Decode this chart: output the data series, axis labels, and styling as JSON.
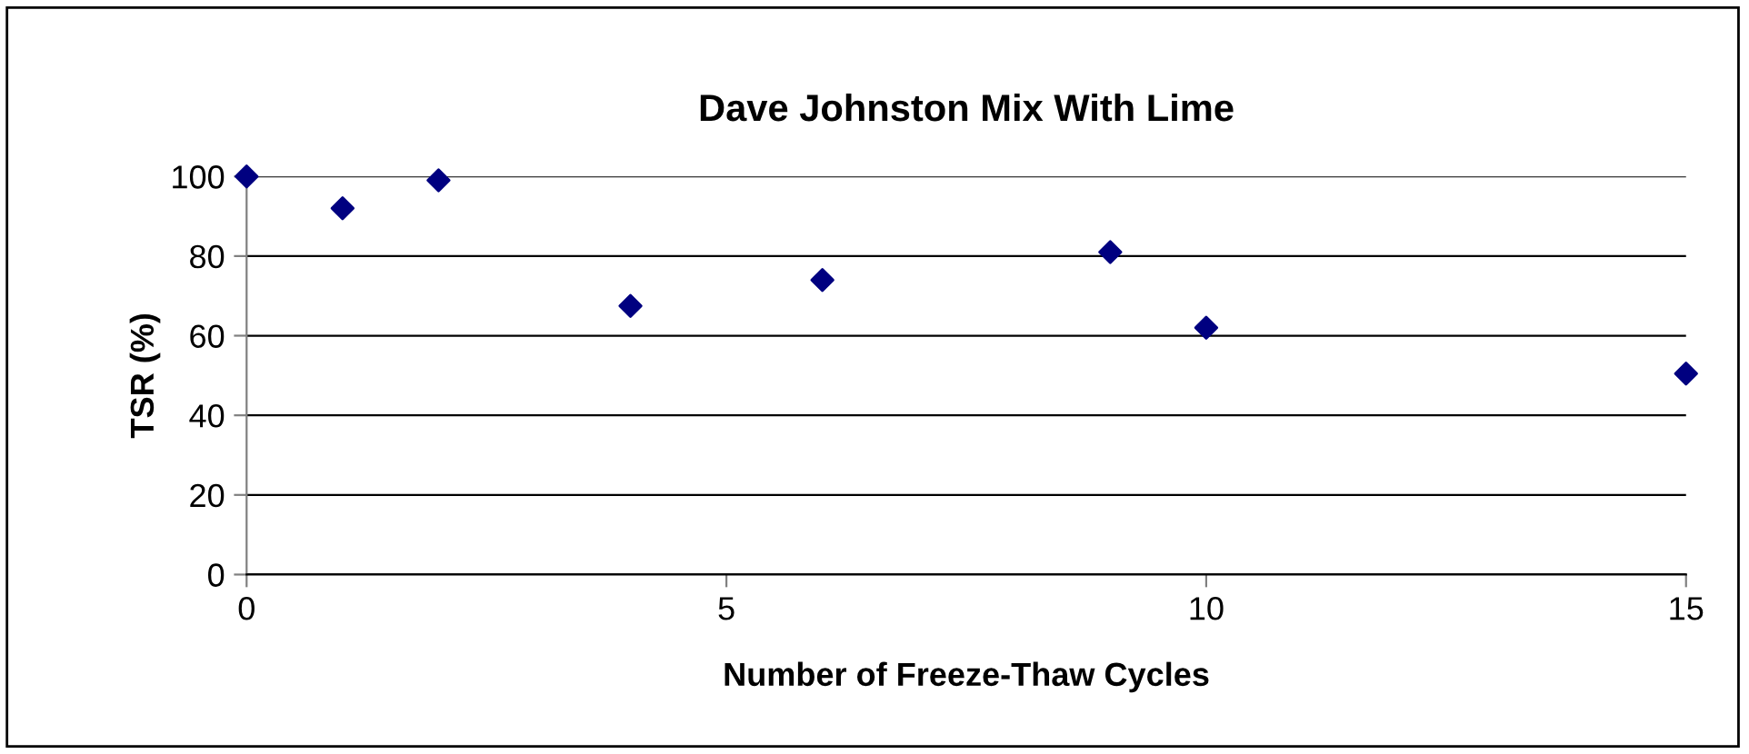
{
  "chart_data": {
    "type": "scatter",
    "title": "Dave Johnston Mix With Lime",
    "xlabel": "Number of Freeze-Thaw Cycles",
    "ylabel": "TSR (%)",
    "x": [
      0,
      1,
      2,
      4,
      6,
      9,
      10,
      15
    ],
    "series": [
      {
        "color": "#000080",
        "values": [
          100,
          92,
          99,
          67.5,
          74,
          81,
          62,
          50.5
        ]
      }
    ],
    "xlim": [
      0,
      15
    ],
    "xticks": [
      0,
      5,
      10,
      15
    ],
    "ylim": [
      0,
      100
    ],
    "yticks": [
      0,
      20,
      40,
      60,
      80,
      100
    ],
    "grid": "y",
    "marker": "diamond",
    "legend": false
  }
}
